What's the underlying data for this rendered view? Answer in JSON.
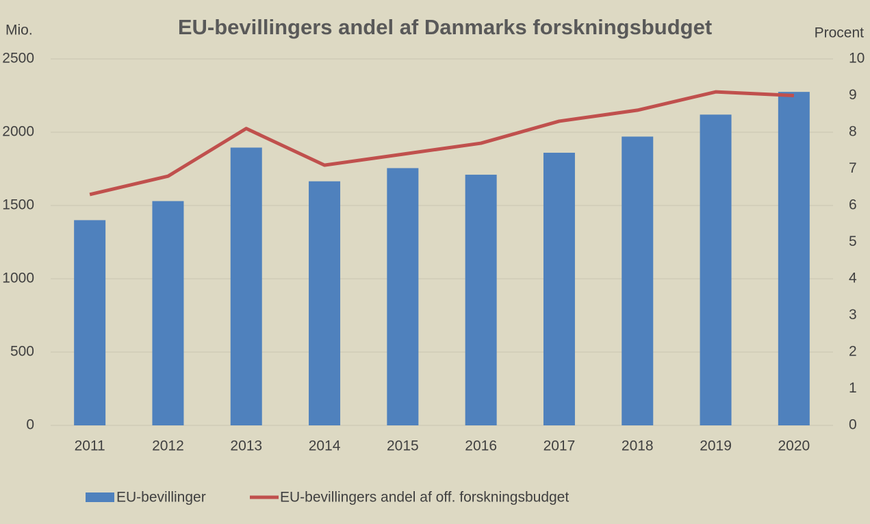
{
  "chart_data": {
    "type": "bar_line",
    "title": "EU-bevillingers andel af Danmarks forskningsbudget",
    "y_label": "Mio.",
    "y2_label": "Procent",
    "categories": [
      "2011",
      "2012",
      "2013",
      "2014",
      "2015",
      "2016",
      "2017",
      "2018",
      "2019",
      "2020"
    ],
    "series": [
      {
        "name": "EU-bevillinger",
        "type": "bar",
        "color": "#4f81bd",
        "values": [
          1400,
          1530,
          1895,
          1665,
          1755,
          1710,
          1860,
          1970,
          2120,
          2275
        ]
      },
      {
        "name": "EU-bevillingers andel af off. forskningsbudget",
        "type": "line",
        "axis": "y2",
        "color": "#c0504d",
        "values": [
          6.3,
          6.8,
          8.1,
          7.1,
          7.4,
          7.7,
          8.3,
          8.6,
          9.1,
          9.0
        ]
      }
    ],
    "ylim": [
      0,
      2500
    ],
    "yticks": [
      0,
      500,
      1000,
      1500,
      2000,
      2500
    ],
    "y2lim": [
      0,
      10
    ],
    "y2ticks": [
      0,
      1,
      2,
      3,
      4,
      5,
      6,
      7,
      8,
      9,
      10
    ],
    "grid": true,
    "legend": "bottom"
  }
}
